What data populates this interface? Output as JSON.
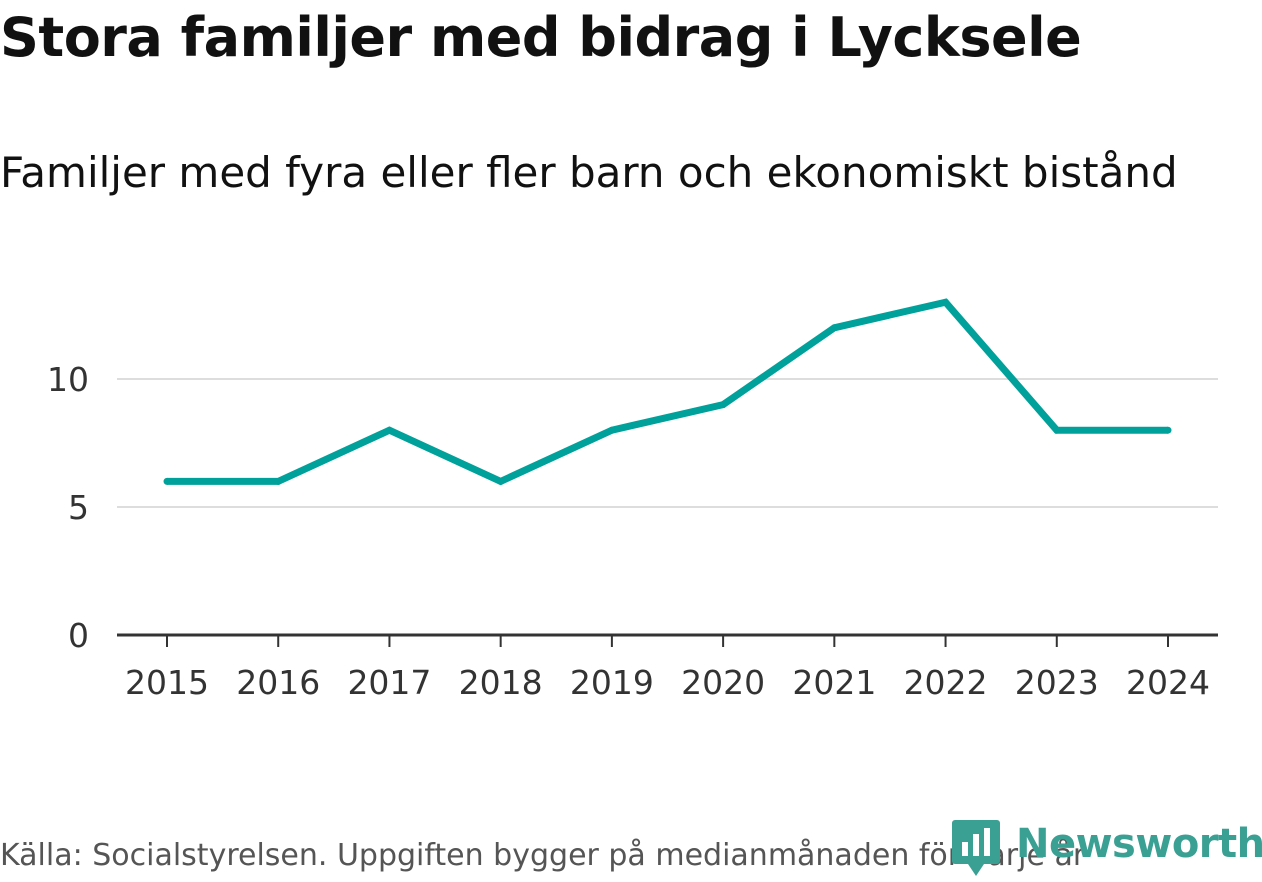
{
  "title": "Stora familjer med bidrag i Lycksele",
  "subtitle": "Familjer med fyra eller fler barn och ekonomiskt bistånd",
  "source": "Källa: Socialstyrelsen. Uppgiften bygger på medianmånaden för varje år",
  "brand": {
    "name": "Newsworthy",
    "icon": "newsworthy-logo-icon",
    "color": "#3aa094"
  },
  "colors": {
    "line": "#00a19a",
    "grid": "#dddddd",
    "axis": "#333333"
  },
  "chart_data": {
    "type": "line",
    "x": [
      "2015",
      "2016",
      "2017",
      "2018",
      "2019",
      "2020",
      "2021",
      "2022",
      "2023",
      "2024"
    ],
    "series": [
      {
        "values": [
          6,
          6,
          8,
          6,
          8,
          9,
          12,
          13,
          8,
          8
        ]
      }
    ],
    "yticks": [
      0,
      5,
      10
    ],
    "ylim": [
      0,
      13
    ],
    "grid": true,
    "legend": "none"
  }
}
